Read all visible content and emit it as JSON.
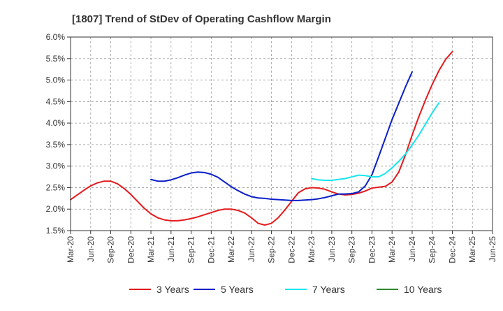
{
  "chart_data": {
    "type": "line",
    "title": "[1807]  Trend of StDev of Operating Cashflow Margin",
    "xlabel": "",
    "ylabel": "",
    "x_ticks": [
      "Mar-20",
      "Jun-20",
      "Sep-20",
      "Dec-20",
      "Mar-21",
      "Jun-21",
      "Sep-21",
      "Dec-21",
      "Mar-22",
      "Jun-22",
      "Sep-22",
      "Dec-22",
      "Mar-23",
      "Jun-23",
      "Sep-23",
      "Dec-23",
      "Mar-24",
      "Jun-24",
      "Sep-24",
      "Dec-24",
      "Mar-25",
      "Jun-25"
    ],
    "y_ticks": [
      "1.5%",
      "2.0%",
      "2.5%",
      "3.0%",
      "3.5%",
      "4.0%",
      "4.5%",
      "5.0%",
      "5.5%",
      "6.0%"
    ],
    "ylim": [
      1.5,
      6.0
    ],
    "y_unit": "%",
    "grid": true,
    "legend_position": "bottom",
    "series": [
      {
        "name": "3 Years",
        "color": "#e41a1c",
        "points": [
          [
            "Mar-20",
            2.22
          ],
          [
            "Apr-20",
            2.33
          ],
          [
            "May-20",
            2.44
          ],
          [
            "Jun-20",
            2.54
          ],
          [
            "Jul-20",
            2.61
          ],
          [
            "Aug-20",
            2.65
          ],
          [
            "Sep-20",
            2.65
          ],
          [
            "Oct-20",
            2.59
          ],
          [
            "Nov-20",
            2.48
          ],
          [
            "Dec-20",
            2.34
          ],
          [
            "Jan-21",
            2.18
          ],
          [
            "Feb-21",
            2.02
          ],
          [
            "Mar-21",
            1.89
          ],
          [
            "Apr-21",
            1.8
          ],
          [
            "May-21",
            1.75
          ],
          [
            "Jun-21",
            1.73
          ],
          [
            "Jul-21",
            1.73
          ],
          [
            "Aug-21",
            1.75
          ],
          [
            "Sep-21",
            1.78
          ],
          [
            "Oct-21",
            1.82
          ],
          [
            "Nov-21",
            1.87
          ],
          [
            "Dec-21",
            1.92
          ],
          [
            "Jan-22",
            1.97
          ],
          [
            "Feb-22",
            2.0
          ],
          [
            "Mar-22",
            2.0
          ],
          [
            "Apr-22",
            1.97
          ],
          [
            "May-22",
            1.91
          ],
          [
            "Jun-22",
            1.8
          ],
          [
            "Jul-22",
            1.67
          ],
          [
            "Aug-22",
            1.63
          ],
          [
            "Sep-22",
            1.67
          ],
          [
            "Oct-22",
            1.8
          ],
          [
            "Nov-22",
            1.98
          ],
          [
            "Dec-22",
            2.18
          ],
          [
            "Jan-23",
            2.38
          ],
          [
            "Feb-23",
            2.47
          ],
          [
            "Mar-23",
            2.5
          ],
          [
            "Apr-23",
            2.49
          ],
          [
            "May-23",
            2.46
          ],
          [
            "Jun-23",
            2.4
          ],
          [
            "Jul-23",
            2.35
          ],
          [
            "Aug-23",
            2.33
          ],
          [
            "Sep-23",
            2.34
          ],
          [
            "Oct-23",
            2.37
          ],
          [
            "Nov-23",
            2.42
          ],
          [
            "Dec-23",
            2.49
          ],
          [
            "Jan-24",
            2.51
          ],
          [
            "Feb-24",
            2.53
          ],
          [
            "Mar-24",
            2.63
          ],
          [
            "Apr-24",
            2.86
          ],
          [
            "May-24",
            3.26
          ],
          [
            "Jun-24",
            3.72
          ],
          [
            "Jul-24",
            4.15
          ],
          [
            "Aug-24",
            4.54
          ],
          [
            "Sep-24",
            4.9
          ],
          [
            "Oct-24",
            5.22
          ],
          [
            "Nov-24",
            5.48
          ],
          [
            "Dec-24",
            5.66
          ]
        ]
      },
      {
        "name": "5 Years",
        "color": "#0a1fc7",
        "points": [
          [
            "Mar-21",
            2.69
          ],
          [
            "Apr-21",
            2.65
          ],
          [
            "May-21",
            2.65
          ],
          [
            "Jun-21",
            2.68
          ],
          [
            "Jul-21",
            2.73
          ],
          [
            "Aug-21",
            2.79
          ],
          [
            "Sep-21",
            2.84
          ],
          [
            "Oct-21",
            2.86
          ],
          [
            "Nov-21",
            2.85
          ],
          [
            "Dec-21",
            2.81
          ],
          [
            "Jan-22",
            2.74
          ],
          [
            "Feb-22",
            2.63
          ],
          [
            "Mar-22",
            2.52
          ],
          [
            "Apr-22",
            2.43
          ],
          [
            "May-22",
            2.35
          ],
          [
            "Jun-22",
            2.29
          ],
          [
            "Jul-22",
            2.26
          ],
          [
            "Aug-22",
            2.25
          ],
          [
            "Sep-22",
            2.23
          ],
          [
            "Oct-22",
            2.22
          ],
          [
            "Nov-22",
            2.21
          ],
          [
            "Dec-22",
            2.2
          ],
          [
            "Jan-23",
            2.2
          ],
          [
            "Feb-23",
            2.21
          ],
          [
            "Mar-23",
            2.22
          ],
          [
            "Apr-23",
            2.24
          ],
          [
            "May-23",
            2.27
          ],
          [
            "Jun-23",
            2.31
          ],
          [
            "Jul-23",
            2.35
          ],
          [
            "Aug-23",
            2.35
          ],
          [
            "Sep-23",
            2.36
          ],
          [
            "Oct-23",
            2.4
          ],
          [
            "Nov-23",
            2.54
          ],
          [
            "Dec-23",
            2.8
          ],
          [
            "Jan-24",
            3.22
          ],
          [
            "Feb-24",
            3.65
          ],
          [
            "Mar-24",
            4.08
          ],
          [
            "Apr-24",
            4.46
          ],
          [
            "May-24",
            4.84
          ],
          [
            "Jun-24",
            5.19
          ]
        ]
      },
      {
        "name": "7 Years",
        "color": "#17e5ed",
        "points": [
          [
            "Mar-23",
            2.71
          ],
          [
            "Apr-23",
            2.68
          ],
          [
            "May-23",
            2.67
          ],
          [
            "Jun-23",
            2.67
          ],
          [
            "Jul-23",
            2.69
          ],
          [
            "Aug-23",
            2.71
          ],
          [
            "Sep-23",
            2.75
          ],
          [
            "Oct-23",
            2.79
          ],
          [
            "Nov-23",
            2.78
          ],
          [
            "Dec-23",
            2.75
          ],
          [
            "Jan-24",
            2.75
          ],
          [
            "Feb-24",
            2.83
          ],
          [
            "Mar-24",
            2.96
          ],
          [
            "Apr-24",
            3.11
          ],
          [
            "May-24",
            3.28
          ],
          [
            "Jun-24",
            3.49
          ],
          [
            "Jul-24",
            3.72
          ],
          [
            "Aug-24",
            3.98
          ],
          [
            "Sep-24",
            4.24
          ],
          [
            "Oct-24",
            4.47
          ]
        ]
      },
      {
        "name": "10 Years",
        "color": "#2e8b2e",
        "points": []
      }
    ]
  }
}
